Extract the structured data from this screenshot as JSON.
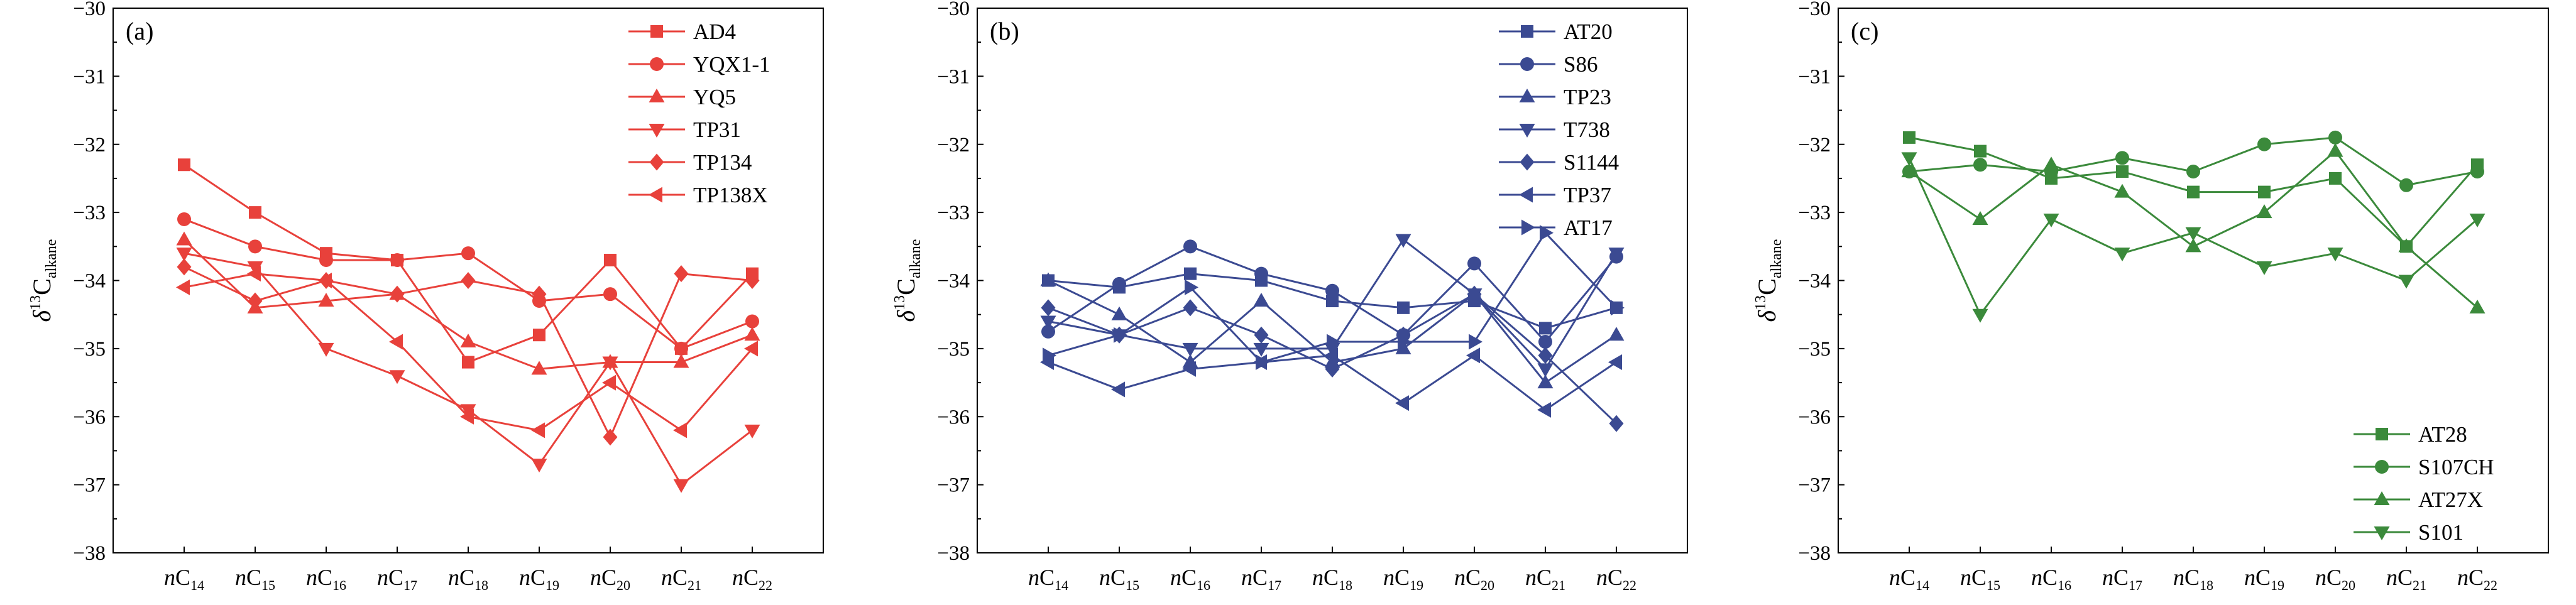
{
  "chart_data": [
    {
      "type": "line",
      "panel_label": "(a)",
      "color": "#E8413B",
      "categories": [
        "14",
        "15",
        "16",
        "17",
        "18",
        "19",
        "20",
        "21",
        "22"
      ],
      "category_prefix": "nC",
      "ylabel_main": "δ",
      "ylabel_sup": "13",
      "ylabel_base": "C",
      "ylabel_sub": "alkane",
      "ylim": [
        -38,
        -30
      ],
      "yticks": [
        "−38",
        "−37",
        "−36",
        "−35",
        "−34",
        "−33",
        "−32",
        "−31",
        "−30"
      ],
      "legend_position": "top-right",
      "series": [
        {
          "name": "AD4",
          "marker": "square",
          "values": [
            -32.3,
            -33.0,
            -33.6,
            -33.7,
            -35.2,
            -34.8,
            -33.7,
            -35.0,
            -33.9
          ]
        },
        {
          "name": "YQX1-1",
          "marker": "circle",
          "values": [
            -33.1,
            -33.5,
            -33.7,
            -33.7,
            -33.6,
            -34.3,
            -34.2,
            -35.0,
            -34.6
          ]
        },
        {
          "name": "YQ5",
          "marker": "triangle-up",
          "values": [
            -33.4,
            -34.4,
            -34.3,
            -34.2,
            -34.9,
            -35.3,
            -35.2,
            -35.2,
            -34.8
          ]
        },
        {
          "name": "TP31",
          "marker": "triangle-down",
          "values": [
            -33.6,
            -33.8,
            -35.0,
            -35.4,
            -35.9,
            -36.7,
            -35.2,
            -37.0,
            -36.2
          ]
        },
        {
          "name": "TP134",
          "marker": "diamond",
          "values": [
            -33.8,
            -34.3,
            -34.0,
            -34.2,
            -34.0,
            -34.2,
            -36.3,
            -33.9,
            -34.0
          ]
        },
        {
          "name": "TP138X",
          "marker": "triangle-left",
          "values": [
            -34.1,
            -33.9,
            -34.0,
            -34.9,
            -36.0,
            -36.2,
            -35.5,
            -36.2,
            -35.0
          ]
        }
      ]
    },
    {
      "type": "line",
      "panel_label": "(b)",
      "color": "#3B4A92",
      "categories": [
        "14",
        "15",
        "16",
        "17",
        "18",
        "19",
        "20",
        "21",
        "22"
      ],
      "category_prefix": "nC",
      "ylabel_main": "δ",
      "ylabel_sup": "13",
      "ylabel_base": "C",
      "ylabel_sub": "alkane",
      "ylim": [
        -38,
        -30
      ],
      "yticks": [
        "−38",
        "−37",
        "−36",
        "−35",
        "−34",
        "−33",
        "−32",
        "−31",
        "−30"
      ],
      "legend_position": "top-right",
      "series": [
        {
          "name": "AT20",
          "marker": "square",
          "values": [
            -34.0,
            -34.1,
            -33.9,
            -34.0,
            -34.3,
            -34.4,
            -34.3,
            -34.7,
            -34.4
          ]
        },
        {
          "name": "S86",
          "marker": "circle",
          "values": [
            -34.75,
            -34.05,
            -33.5,
            -33.9,
            -34.15,
            -34.8,
            -33.75,
            -34.9,
            -33.65
          ]
        },
        {
          "name": "TP23",
          "marker": "triangle-up",
          "values": [
            -34.0,
            -34.5,
            -35.2,
            -34.3,
            -35.2,
            -35.0,
            -34.2,
            -35.5,
            -34.8
          ]
        },
        {
          "name": "T738",
          "marker": "triangle-down",
          "values": [
            -34.6,
            -34.8,
            -35.0,
            -35.0,
            -35.0,
            -33.4,
            -34.2,
            -35.3,
            -33.6
          ]
        },
        {
          "name": "S1144",
          "marker": "diamond",
          "values": [
            -34.4,
            -34.8,
            -34.4,
            -34.8,
            -35.3,
            -34.8,
            -34.2,
            -35.1,
            -36.1
          ]
        },
        {
          "name": "TP37",
          "marker": "triangle-left",
          "values": [
            -35.2,
            -35.6,
            -35.3,
            -35.2,
            -35.1,
            -35.8,
            -35.1,
            -35.9,
            -35.2
          ]
        },
        {
          "name": "AT17",
          "marker": "triangle-right",
          "values": [
            -35.1,
            -34.8,
            -34.1,
            -35.2,
            -34.9,
            -34.9,
            -34.9,
            -33.3,
            -34.4
          ]
        }
      ]
    },
    {
      "type": "line",
      "panel_label": "(c)",
      "color": "#3B8A3B",
      "categories": [
        "14",
        "15",
        "16",
        "17",
        "18",
        "19",
        "20",
        "21",
        "22"
      ],
      "category_prefix": "nC",
      "ylabel_main": "δ",
      "ylabel_sup": "13",
      "ylabel_base": "C",
      "ylabel_sub": "alkane",
      "ylim": [
        -38,
        -30
      ],
      "yticks": [
        "−38",
        "−37",
        "−36",
        "−35",
        "−34",
        "−33",
        "−32",
        "−31",
        "−30"
      ],
      "legend_position": "bottom-right",
      "series": [
        {
          "name": "AT28",
          "marker": "square",
          "values": [
            -31.9,
            -32.1,
            -32.5,
            -32.4,
            -32.7,
            -32.7,
            -32.5,
            -33.5,
            -32.3
          ]
        },
        {
          "name": "S107CH",
          "marker": "circle",
          "values": [
            -32.4,
            -32.3,
            -32.4,
            -32.2,
            -32.4,
            -32.0,
            -31.9,
            -32.6,
            -32.4
          ]
        },
        {
          "name": "AT27X",
          "marker": "triangle-up",
          "values": [
            -32.4,
            -33.1,
            -32.3,
            -32.7,
            -33.5,
            -33.0,
            -32.1,
            -33.5,
            -34.4
          ]
        },
        {
          "name": "S101",
          "marker": "triangle-down",
          "values": [
            -32.2,
            -34.5,
            -33.1,
            -33.6,
            -33.3,
            -33.8,
            -33.6,
            -34.0,
            -33.1
          ]
        }
      ]
    }
  ]
}
